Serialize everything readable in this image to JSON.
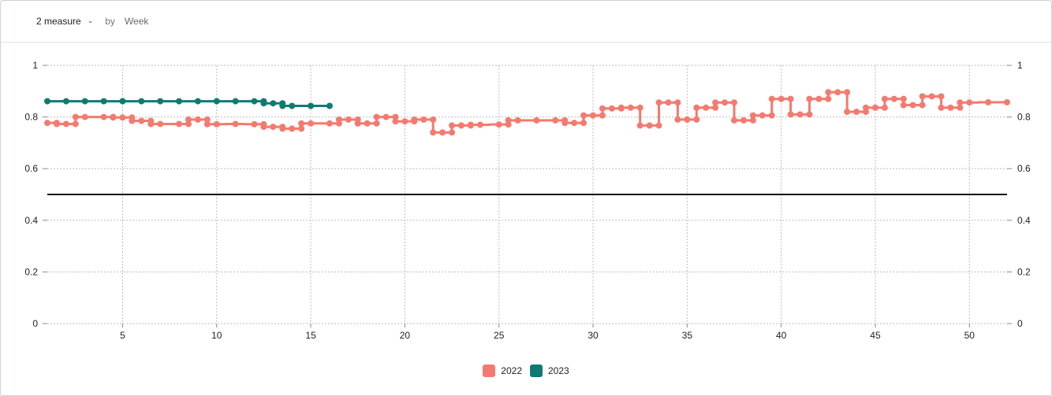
{
  "toolbar": {
    "measure_label": "2 measure",
    "chevron_icon": "chevron-down-icon",
    "by_label": "by",
    "group_by_label": "Week"
  },
  "chart_data": {
    "type": "line",
    "step": true,
    "x_ticks": [
      5,
      10,
      15,
      20,
      25,
      30,
      35,
      40,
      45,
      50
    ],
    "xlim": [
      1,
      52
    ],
    "y_ticks_left": [
      "0",
      "0.2",
      "0.4",
      "0.6",
      "0.8",
      "1"
    ],
    "y_ticks_right": [
      "0",
      "0.2",
      "0.4",
      "0.6",
      "0.8",
      "1"
    ],
    "ylim": [
      0,
      1
    ],
    "grid": true,
    "reference_line": 0.5,
    "legend_position": "bottom-center",
    "series": [
      {
        "name": "2022",
        "color": "#f47a6f",
        "x": [
          1,
          2,
          3,
          4,
          5,
          6,
          7,
          8,
          9,
          10,
          11,
          12,
          13,
          14,
          15,
          16,
          17,
          18,
          19,
          20,
          21,
          22,
          23,
          24,
          25,
          26,
          27,
          28,
          29,
          30,
          31,
          32,
          33,
          34,
          35,
          36,
          37,
          38,
          39,
          40,
          41,
          42,
          43,
          44,
          45,
          46,
          47,
          48,
          49,
          50,
          51,
          52
        ],
        "values": [
          0.777,
          0.773,
          0.8,
          0.8,
          0.798,
          0.785,
          0.773,
          0.773,
          0.79,
          0.772,
          0.773,
          0.772,
          0.762,
          0.755,
          0.775,
          0.775,
          0.79,
          0.775,
          0.8,
          0.783,
          0.79,
          0.74,
          0.767,
          0.77,
          0.771,
          0.787,
          0.787,
          0.787,
          0.777,
          0.806,
          0.833,
          0.836,
          0.767,
          0.856,
          0.79,
          0.836,
          0.856,
          0.787,
          0.806,
          0.87,
          0.81,
          0.87,
          0.896,
          0.82,
          0.836,
          0.87,
          0.846,
          0.88,
          0.836,
          0.856,
          0.857,
          0.857
        ]
      },
      {
        "name": "2023",
        "color": "#0f7b70",
        "x": [
          1,
          2,
          3,
          4,
          5,
          6,
          7,
          8,
          9,
          10,
          11,
          12,
          13,
          14,
          15,
          16
        ],
        "values": [
          0.861,
          0.861,
          0.861,
          0.861,
          0.861,
          0.861,
          0.861,
          0.861,
          0.861,
          0.861,
          0.861,
          0.861,
          0.853,
          0.843,
          0.843,
          0.843
        ]
      }
    ]
  }
}
